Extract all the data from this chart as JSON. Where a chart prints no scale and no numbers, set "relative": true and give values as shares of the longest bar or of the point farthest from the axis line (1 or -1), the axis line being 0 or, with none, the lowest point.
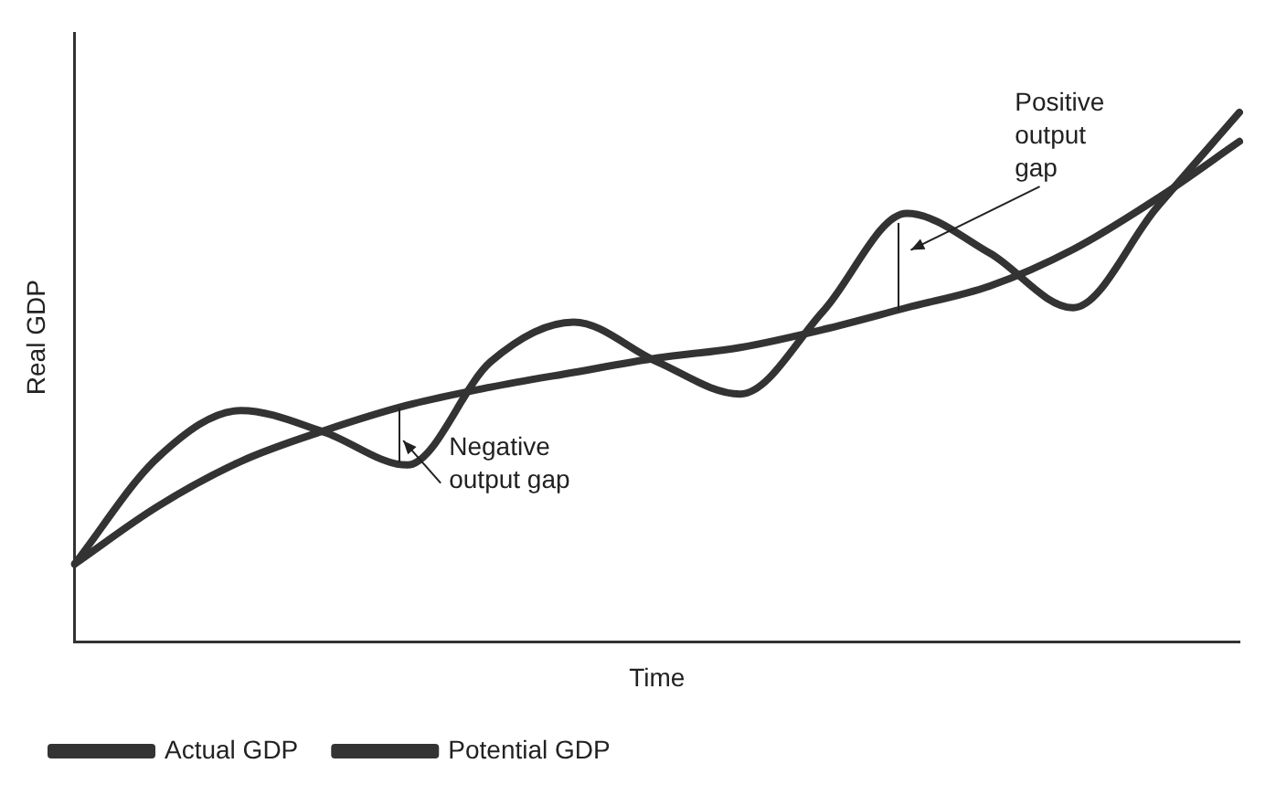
{
  "chart_data": {
    "type": "line",
    "relative": true,
    "xlabel": "Time",
    "ylabel": "Real GDP",
    "categories": [
      null,
      null,
      null,
      null,
      null,
      null,
      null,
      null,
      null,
      null,
      null,
      null,
      null,
      null,
      null
    ],
    "series": [
      {
        "name": "Actual GDP",
        "color": "#333333",
        "values": [
          0.147,
          0.348,
          0.437,
          0.396,
          0.334,
          0.529,
          0.604,
          0.529,
          0.468,
          0.625,
          0.809,
          0.734,
          0.631,
          0.819,
          1
        ]
      },
      {
        "name": "Potential GDP",
        "color": "#333333",
        "values": [
          0.147,
          0.256,
          0.341,
          0.399,
          0.447,
          0.481,
          0.509,
          0.536,
          0.556,
          0.59,
          0.631,
          0.672,
          0.741,
          0.836,
          0.945
        ]
      }
    ],
    "annotations": [
      "Positive output gap",
      "Negative output gap"
    ],
    "legend": "bottom",
    "grid": false,
    "marker": "none",
    "line_style": "solid"
  }
}
